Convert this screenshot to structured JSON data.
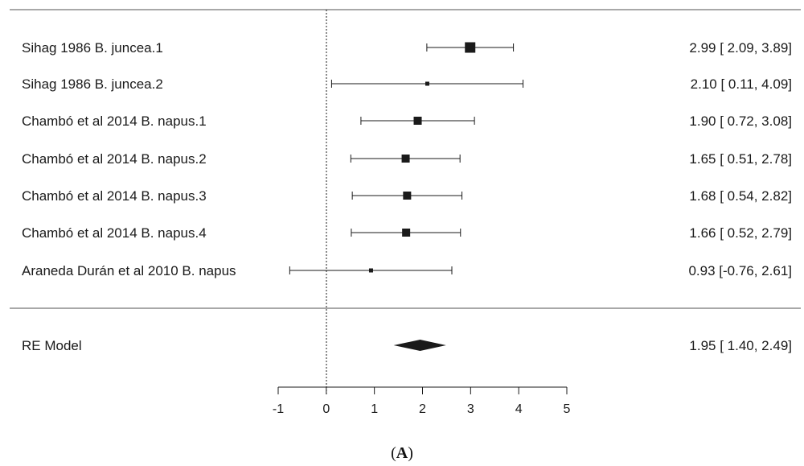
{
  "panel_label": {
    "open": "(",
    "letter": "A",
    "close": ")"
  },
  "chart_data": {
    "type": "forest",
    "studies": [
      {
        "label": "Sihag 1986 B. juncea.1",
        "estimate": 2.99,
        "ci_lower": 2.09,
        "ci_upper": 3.89,
        "ci_text": "2.99 [ 2.09, 3.89]",
        "weight": "large"
      },
      {
        "label": "Sihag 1986 B. juncea.2",
        "estimate": 2.1,
        "ci_lower": 0.11,
        "ci_upper": 4.09,
        "ci_text": "2.10 [ 0.11, 4.09]",
        "weight": "small"
      },
      {
        "label": "Chambó et al 2014 B. napus.1",
        "estimate": 1.9,
        "ci_lower": 0.72,
        "ci_upper": 3.08,
        "ci_text": "1.90 [ 0.72, 3.08]",
        "weight": "medium"
      },
      {
        "label": "Chambó et al 2014 B. napus.2",
        "estimate": 1.65,
        "ci_lower": 0.51,
        "ci_upper": 2.78,
        "ci_text": "1.65 [ 0.51, 2.78]",
        "weight": "medium"
      },
      {
        "label": "Chambó et al 2014 B. napus.3",
        "estimate": 1.68,
        "ci_lower": 0.54,
        "ci_upper": 2.82,
        "ci_text": "1.68 [ 0.54, 2.82]",
        "weight": "medium"
      },
      {
        "label": "Chambó et al 2014 B. napus.4",
        "estimate": 1.66,
        "ci_lower": 0.52,
        "ci_upper": 2.79,
        "ci_text": "1.66 [ 0.52, 2.79]",
        "weight": "medium"
      },
      {
        "label": "Araneda Durán et al 2010 B. napus",
        "estimate": 0.93,
        "ci_lower": -0.76,
        "ci_upper": 2.61,
        "ci_text": "0.93 [-0.76, 2.61]",
        "weight": "small"
      }
    ],
    "summary": {
      "label": "RE Model",
      "estimate": 1.95,
      "ci_lower": 1.4,
      "ci_upper": 2.49,
      "ci_text": "1.95 [ 1.40, 2.49]"
    },
    "x_ticks": [
      -1,
      0,
      1,
      2,
      3,
      4,
      5
    ],
    "x_tick_labels": [
      "-1",
      "0",
      "1",
      "2",
      "3",
      "4",
      "5"
    ],
    "xlim": [
      -1,
      5
    ],
    "reference_line": 0,
    "colors": {
      "ink": "#1a1a1a",
      "rule": "#8c8c8c"
    }
  }
}
